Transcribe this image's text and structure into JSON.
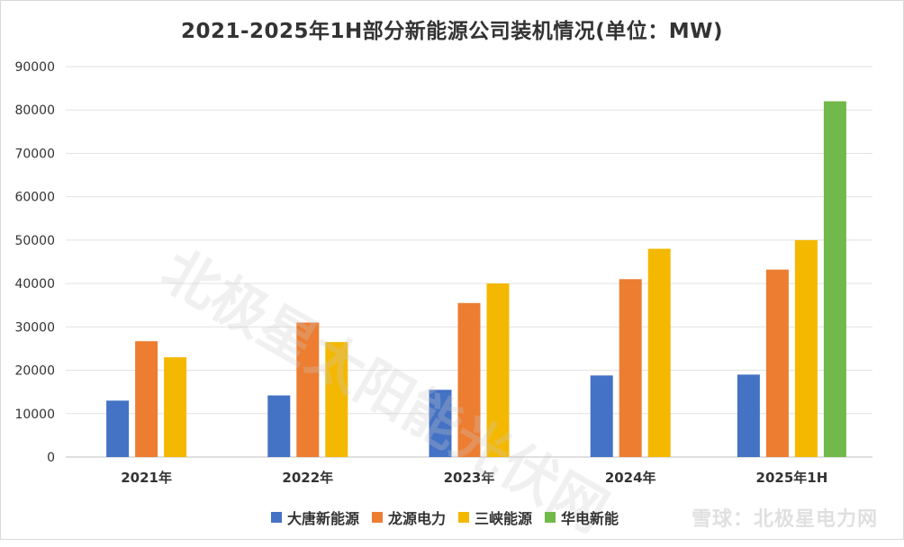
{
  "chart_data": {
    "type": "bar",
    "title": "2021-2025年1H部分新能源公司装机情况(单位：MW)",
    "categories": [
      "2021年",
      "2022年",
      "2023年",
      "2024年",
      "2025年1H"
    ],
    "ylim": [
      0,
      90000
    ],
    "yticks": [
      0,
      10000,
      20000,
      30000,
      40000,
      50000,
      60000,
      70000,
      80000,
      90000
    ],
    "grid": true,
    "legend": "bottom",
    "series": [
      {
        "name": "大唐新能源",
        "color": "#4472c4",
        "values": [
          13000,
          14200,
          15500,
          18800,
          19000
        ]
      },
      {
        "name": "龙源电力",
        "color": "#ed7d31",
        "values": [
          26700,
          31000,
          35500,
          41000,
          43200
        ]
      },
      {
        "name": "三峡能源",
        "color": "#f4b800",
        "values": [
          23000,
          26500,
          40000,
          48000,
          50000
        ]
      },
      {
        "name": "华电新能",
        "color": "#70b94a",
        "values": [
          null,
          null,
          null,
          null,
          82000
        ]
      }
    ]
  },
  "watermark": {
    "corner_text": "雪球：北极星电力网",
    "diagonal_text": "北极星太阳能光伏网"
  }
}
